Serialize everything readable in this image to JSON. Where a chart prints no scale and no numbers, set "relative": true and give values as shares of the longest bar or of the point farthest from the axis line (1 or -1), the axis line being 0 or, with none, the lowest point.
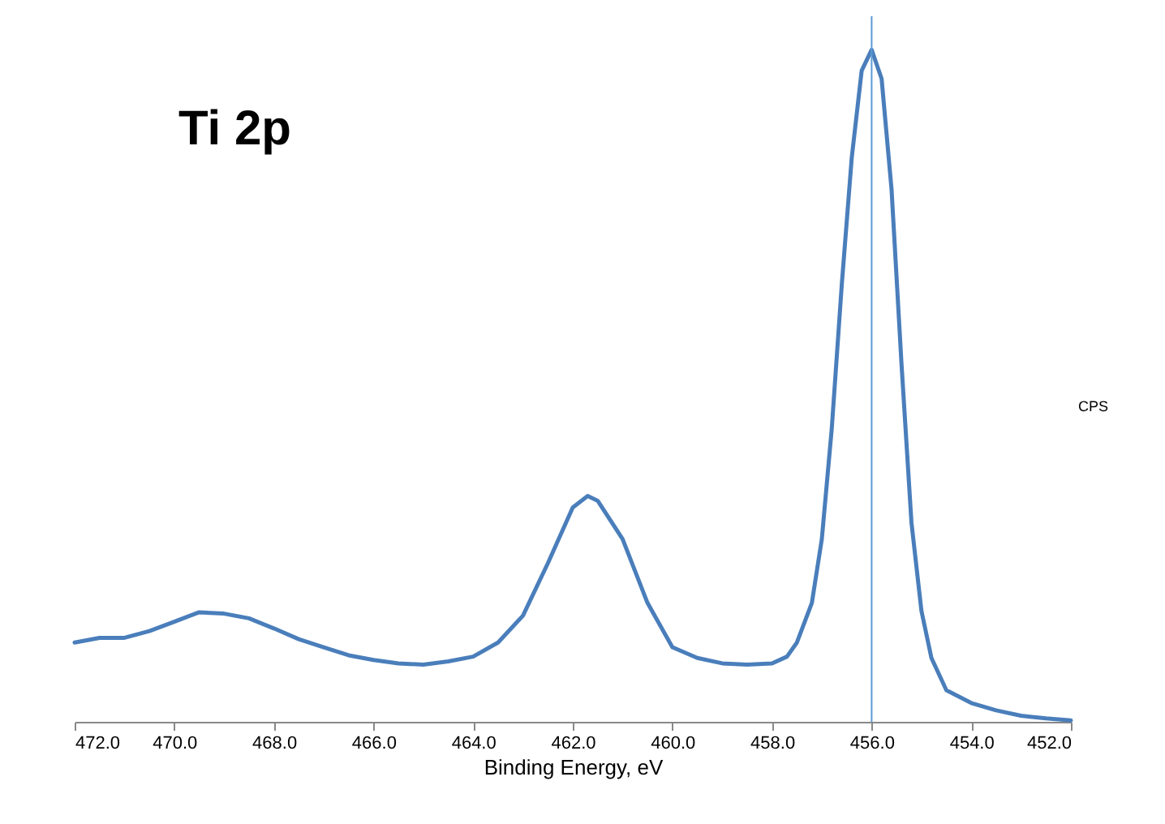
{
  "chart_data": {
    "type": "line",
    "title": "Ti 2p",
    "xlabel": "Binding Energy, eV",
    "ylabel": "CPS",
    "relative": true,
    "grid": false,
    "marker": "none",
    "line_style": "solid",
    "xlim": [
      472,
      452
    ],
    "xticks": [
      {
        "value": 472,
        "label": "472.0"
      },
      {
        "value": 470,
        "label": "470.0"
      },
      {
        "value": 468,
        "label": "468.0"
      },
      {
        "value": 466,
        "label": "466.0"
      },
      {
        "value": 464,
        "label": "464.0"
      },
      {
        "value": 462,
        "label": "462.0"
      },
      {
        "value": 460,
        "label": "460.0"
      },
      {
        "value": 458,
        "label": "458.0"
      },
      {
        "value": 456,
        "label": "456.0"
      },
      {
        "value": 454,
        "label": "454.0"
      },
      {
        "value": 452,
        "label": "452.0"
      }
    ],
    "ref_lines": [
      {
        "axis": "x",
        "value": 456,
        "color": "#5b9bd5"
      }
    ],
    "series": [
      {
        "color": "#4a7ebb",
        "x": [
          472,
          471.5,
          471,
          470.5,
          470,
          469.5,
          469,
          468.5,
          468,
          467.5,
          467,
          466.5,
          466,
          465.5,
          465,
          464.5,
          464,
          463.5,
          463,
          462.5,
          462,
          461.7,
          461.5,
          461,
          460.5,
          460,
          459.5,
          459,
          458.5,
          458,
          457.7,
          457.5,
          457.2,
          457,
          456.8,
          456.6,
          456.4,
          456.2,
          456,
          455.8,
          455.6,
          455.4,
          455.2,
          455,
          454.8,
          454.5,
          454,
          453.5,
          453,
          452.5,
          452
        ],
        "values": [
          0.118,
          0.125,
          0.125,
          0.135,
          0.149,
          0.163,
          0.161,
          0.154,
          0.139,
          0.123,
          0.111,
          0.099,
          0.092,
          0.087,
          0.085,
          0.09,
          0.097,
          0.118,
          0.158,
          0.236,
          0.319,
          0.336,
          0.329,
          0.272,
          0.177,
          0.111,
          0.095,
          0.087,
          0.085,
          0.087,
          0.097,
          0.118,
          0.177,
          0.272,
          0.437,
          0.65,
          0.839,
          0.969,
          1,
          0.957,
          0.792,
          0.532,
          0.296,
          0.165,
          0.095,
          0.047,
          0.028,
          0.017,
          0.009,
          0.005,
          0.002
        ]
      }
    ]
  }
}
